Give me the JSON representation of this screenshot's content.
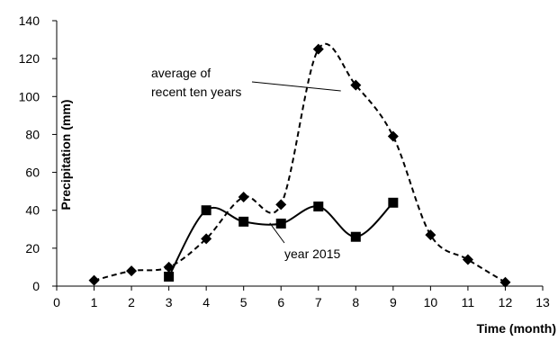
{
  "chart_data": {
    "type": "line",
    "title": "",
    "xlabel": "Time (month)",
    "ylabel": "Precipitation (mm)",
    "xlim": [
      0,
      13
    ],
    "ylim": [
      0,
      140
    ],
    "xticks": [
      0,
      1,
      2,
      3,
      4,
      5,
      6,
      7,
      8,
      9,
      10,
      11,
      12,
      13
    ],
    "yticks": [
      0,
      20,
      40,
      60,
      80,
      100,
      120,
      140
    ],
    "grid": false,
    "legend": "none",
    "series": [
      {
        "name": "average of recent ten years",
        "label_lines": [
          "average of",
          "recent ten years"
        ],
        "line_style": "dashed",
        "marker": "diamond",
        "color": "#000000",
        "x": [
          1,
          2,
          3,
          4,
          5,
          6,
          7,
          8,
          9,
          10,
          11,
          12
        ],
        "y": [
          3,
          8,
          10,
          25,
          47,
          43,
          125,
          106,
          79,
          27,
          14,
          2
        ]
      },
      {
        "name": "year 2015",
        "label_lines": [
          "year 2015"
        ],
        "line_style": "solid",
        "marker": "square",
        "color": "#000000",
        "x": [
          3,
          4,
          5,
          6,
          7,
          8,
          9
        ],
        "y": [
          5,
          40,
          34,
          33,
          42,
          26,
          44
        ]
      }
    ]
  }
}
